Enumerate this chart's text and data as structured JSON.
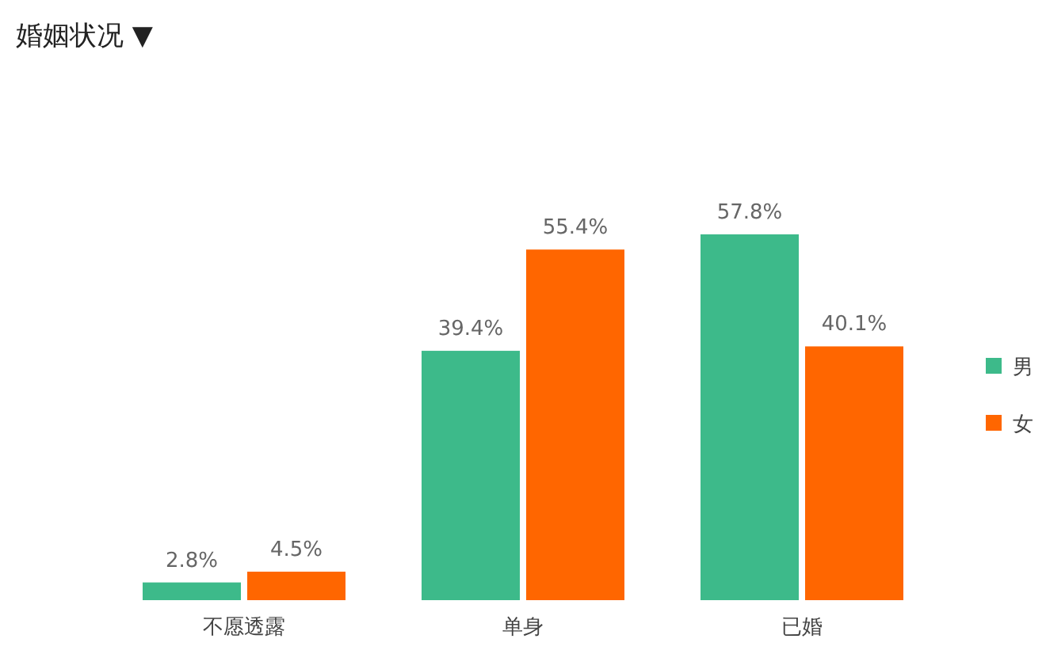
{
  "chart_data": {
    "type": "bar",
    "title": "婚姻状况 ▼",
    "categories": [
      "不愿透露",
      "单身",
      "已婚"
    ],
    "series": [
      {
        "name": "男",
        "color": "#3dba8a",
        "values": [
          2.8,
          39.4,
          57.8
        ],
        "value_labels": [
          "2.8%",
          "39.4%",
          "57.8%"
        ]
      },
      {
        "name": "女",
        "color": "#ff6600",
        "values": [
          4.5,
          55.4,
          40.1
        ],
        "value_labels": [
          "4.5%",
          "55.4%",
          "40.1%"
        ]
      }
    ],
    "legend": "right"
  }
}
